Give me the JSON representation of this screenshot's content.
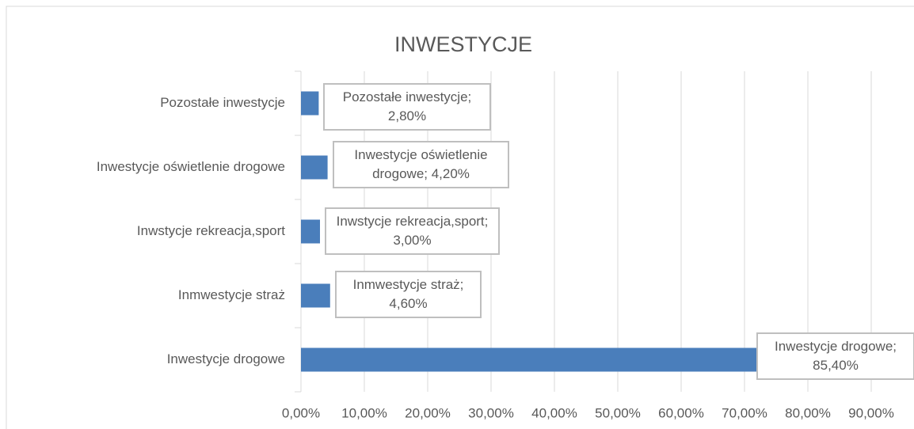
{
  "chart_data": {
    "type": "barh",
    "title": "INWESTYCJE",
    "categories": [
      "Pozostałe inwestycje",
      "Inwestycje oświetlenie drogowe",
      "Inwstycje rekreacja,sport",
      "Inmwestycje straż",
      "Inwestycje drogowe"
    ],
    "values": [
      2.8,
      4.2,
      3.0,
      4.6,
      85.4
    ],
    "value_labels": [
      "Pozostałe inwestycje; 2,80%",
      "Inwestycje oświetlenie drogowe; 4,20%",
      "Inwstycje rekreacja,sport; 3,00%",
      "Inmwestycje straż; 4,60%",
      "Inwestycje drogowe; 85,40%"
    ],
    "color": "#4a7ebb",
    "xlim": [
      0,
      96.75
    ],
    "xticks": [
      {
        "value": 0,
        "label": "0,00%"
      },
      {
        "value": 10,
        "label": "10,00%"
      },
      {
        "value": 20,
        "label": "20,00%"
      },
      {
        "value": 30,
        "label": "30,00%"
      },
      {
        "value": 40,
        "label": "40,00%"
      },
      {
        "value": 50,
        "label": "50,00%"
      },
      {
        "value": 60,
        "label": "60,00%"
      },
      {
        "value": 70,
        "label": "70,00%"
      },
      {
        "value": 80,
        "label": "80,00%"
      },
      {
        "value": 90,
        "label": "90,00%"
      }
    ],
    "grid": true
  }
}
